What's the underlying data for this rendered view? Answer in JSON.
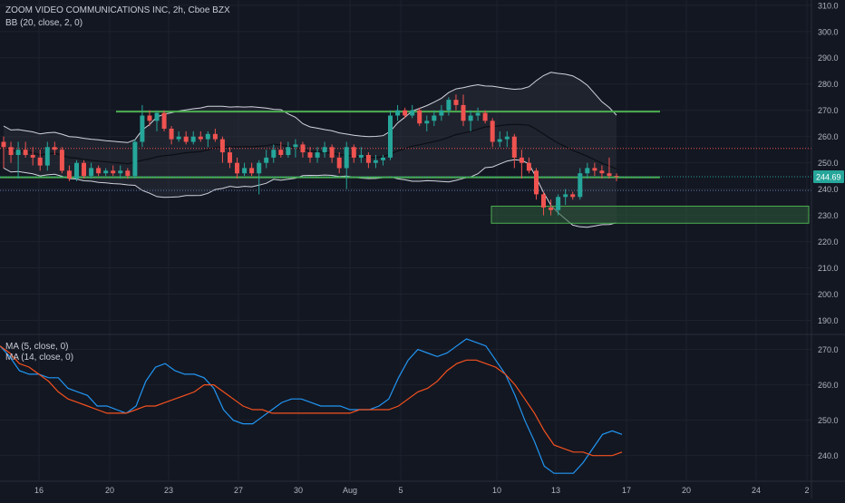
{
  "header": {
    "title": "ZOOM VIDEO COMMUNICATIONS INC, 2h, Cboe BZX",
    "indicator": "BB (20, close, 2, 0)"
  },
  "lower_pane": {
    "legend1": "MA (5, close, 0)",
    "legend2": "MA (14, close, 0)"
  },
  "colors": {
    "background": "#131722",
    "grid": "#1e222d",
    "up": "#26a69a",
    "down": "#ef5350",
    "bb_band": "#d1d4dc",
    "bb_basis": "#0b0e14",
    "bb_fill": "#363a45",
    "level_line": "#4caf50",
    "zone_fill": "#2e5c3a",
    "ma5": "#2196f3",
    "ma14": "#f4511e",
    "price_tag": "#26a69a"
  },
  "chart_data": [
    {
      "type": "candlestick",
      "title": "ZOOM VIDEO COMMUNICATIONS INC, 2h, Cboe BZX",
      "y_axis_ticks": [
        310.0,
        300.0,
        290.0,
        280.0,
        270.0,
        260.0,
        250.0,
        240.0,
        230.0,
        220.0,
        210.0,
        200.0,
        190.0
      ],
      "ylim": [
        185,
        312
      ],
      "x_axis_ticks": [
        "16",
        "20",
        "23",
        "27",
        "30",
        "Aug",
        "5",
        "10",
        "13",
        "17",
        "20",
        "24",
        "2"
      ],
      "last_price": "244.69",
      "candles_ohlc": [
        [
          258,
          260,
          248,
          256
        ],
        [
          256,
          258,
          250,
          253
        ],
        [
          253,
          258,
          244,
          255
        ],
        [
          255,
          258,
          252,
          253
        ],
        [
          253,
          256,
          249,
          252
        ],
        [
          252,
          255,
          247,
          249
        ],
        [
          249,
          258,
          247,
          256
        ],
        [
          256,
          258,
          253,
          255
        ],
        [
          255,
          256,
          246,
          247
        ],
        [
          247,
          249,
          243,
          244
        ],
        [
          244,
          251,
          243,
          250
        ],
        [
          250,
          251,
          244,
          245
        ],
        [
          245,
          250,
          244,
          248
        ],
        [
          248,
          249,
          245,
          246
        ],
        [
          246,
          248,
          245,
          247
        ],
        [
          247,
          249,
          245,
          246
        ],
        [
          246,
          249,
          244,
          247
        ],
        [
          247,
          248,
          244,
          245
        ],
        [
          245,
          259,
          244,
          258
        ],
        [
          258,
          272,
          256,
          268
        ],
        [
          268,
          270,
          264,
          266
        ],
        [
          266,
          270,
          262,
          269
        ],
        [
          269,
          270,
          262,
          263
        ],
        [
          263,
          264,
          257,
          259
        ],
        [
          259,
          262,
          258,
          260
        ],
        [
          260,
          262,
          257,
          258
        ],
        [
          258,
          262,
          257,
          260
        ],
        [
          260,
          262,
          258,
          259
        ],
        [
          259,
          262,
          256,
          261
        ],
        [
          261,
          263,
          258,
          259
        ],
        [
          259,
          260,
          250,
          254
        ],
        [
          254,
          256,
          248,
          250
        ],
        [
          250,
          252,
          244,
          246
        ],
        [
          246,
          250,
          245,
          248
        ],
        [
          248,
          250,
          245,
          246
        ],
        [
          246,
          251,
          238,
          250
        ],
        [
          250,
          255,
          248,
          252
        ],
        [
          252,
          257,
          250,
          255
        ],
        [
          255,
          258,
          252,
          253
        ],
        [
          253,
          258,
          252,
          256
        ],
        [
          256,
          259,
          252,
          257
        ],
        [
          257,
          258,
          252,
          254
        ],
        [
          254,
          256,
          250,
          252
        ],
        [
          252,
          256,
          250,
          254
        ],
        [
          254,
          258,
          252,
          256
        ],
        [
          256,
          257,
          250,
          252
        ],
        [
          252,
          254,
          246,
          248
        ],
        [
          248,
          258,
          240,
          256
        ],
        [
          256,
          257,
          250,
          252
        ],
        [
          252,
          256,
          250,
          253
        ],
        [
          253,
          254,
          248,
          250
        ],
        [
          250,
          253,
          248,
          251
        ],
        [
          251,
          253,
          249,
          252
        ],
        [
          252,
          270,
          251,
          268
        ],
        [
          268,
          272,
          266,
          270
        ],
        [
          270,
          271,
          267,
          268
        ],
        [
          268,
          272,
          267,
          270
        ],
        [
          270,
          271,
          264,
          265
        ],
        [
          265,
          268,
          262,
          266
        ],
        [
          266,
          270,
          264,
          268
        ],
        [
          268,
          272,
          266,
          270
        ],
        [
          270,
          275,
          268,
          274
        ],
        [
          274,
          276,
          270,
          272
        ],
        [
          272,
          276,
          264,
          266
        ],
        [
          266,
          270,
          262,
          268
        ],
        [
          268,
          271,
          266,
          269
        ],
        [
          269,
          270,
          265,
          266
        ],
        [
          266,
          267,
          256,
          258
        ],
        [
          258,
          262,
          256,
          259
        ],
        [
          259,
          262,
          256,
          260
        ],
        [
          260,
          261,
          248,
          252
        ],
        [
          252,
          255,
          244,
          250
        ],
        [
          250,
          252,
          246,
          247
        ],
        [
          247,
          248,
          236,
          238
        ],
        [
          238,
          239,
          230,
          233
        ],
        [
          233,
          236,
          230,
          232
        ],
        [
          232,
          238,
          230,
          237
        ],
        [
          237,
          240,
          234,
          238
        ],
        [
          238,
          239,
          236,
          237
        ],
        [
          237,
          248,
          236,
          246
        ],
        [
          246,
          250,
          244,
          248
        ],
        [
          248,
          250,
          245,
          247
        ],
        [
          247,
          249,
          244,
          246
        ],
        [
          246,
          252,
          244,
          245
        ],
        [
          245,
          246,
          243,
          244.69
        ]
      ]
    },
    {
      "type": "line",
      "legend": [
        "MA (5, close, 0)",
        "MA (14, close, 0)"
      ],
      "y_axis_ticks": [
        270.0,
        260.0,
        250.0,
        240.0
      ],
      "ylim": [
        233,
        274
      ],
      "series": [
        {
          "name": "MA (5, close, 0)",
          "values": [
            271,
            268,
            264,
            263,
            263,
            262,
            262,
            259,
            258,
            257,
            254,
            254,
            253,
            252,
            254,
            261,
            265,
            266,
            264,
            263,
            263,
            262,
            259,
            253,
            250,
            249,
            249,
            251,
            253,
            255,
            256,
            256,
            255,
            254,
            254,
            254,
            253,
            253,
            253,
            254,
            256,
            262,
            267,
            270,
            269,
            268,
            269,
            271,
            273,
            272,
            271,
            267,
            263,
            257,
            250,
            244,
            237,
            235,
            235,
            235,
            238,
            242,
            246,
            247,
            246
          ]
        },
        {
          "name": "MA (14, close, 0)",
          "values": [
            271,
            269,
            266,
            265,
            263,
            261,
            258,
            256,
            255,
            254,
            253,
            252,
            252,
            252,
            253,
            254,
            254,
            255,
            256,
            257,
            258,
            260,
            260,
            258,
            256,
            254,
            253,
            253,
            252,
            252,
            252,
            252,
            252,
            252,
            252,
            252,
            252,
            253,
            253,
            253,
            253,
            254,
            256,
            258,
            259,
            261,
            264,
            266,
            267,
            267,
            266,
            265,
            263,
            260,
            256,
            252,
            247,
            243,
            242,
            241,
            241,
            240,
            240,
            240,
            241
          ]
        }
      ]
    }
  ]
}
